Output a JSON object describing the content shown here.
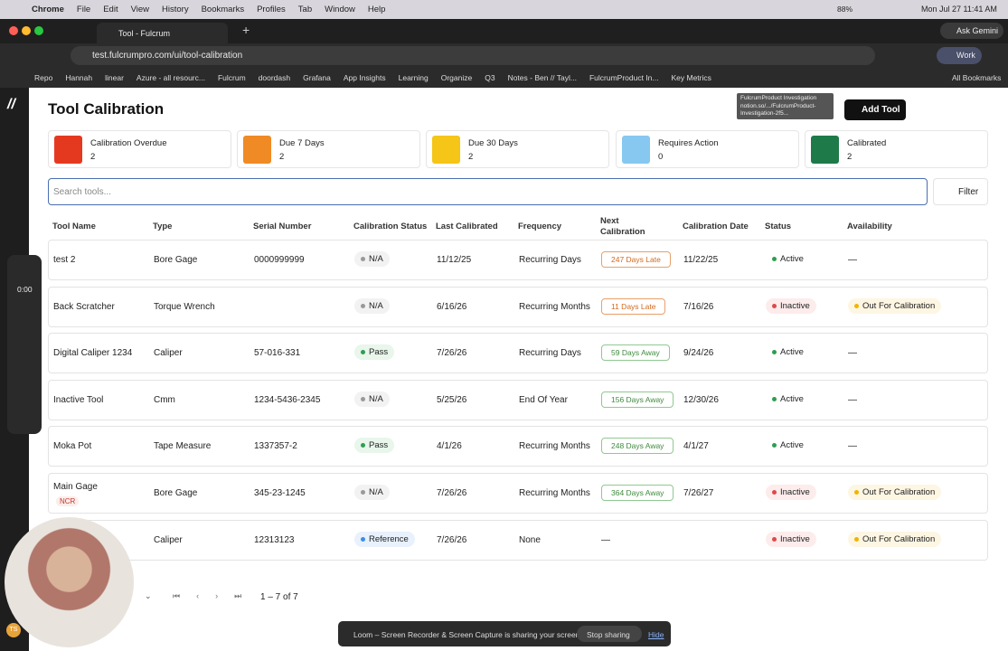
{
  "mac_menu": {
    "app": "Chrome",
    "items": [
      "File",
      "Edit",
      "View",
      "History",
      "Bookmarks",
      "Profiles",
      "Tab",
      "Window",
      "Help"
    ],
    "battery": "88%",
    "datetime": "Mon Jul 27  11:41 AM"
  },
  "browser": {
    "tab_title": "Tool - Fulcrum",
    "url": "test.fulcrumpro.com/ui/tool-calibration",
    "ask": "Ask Gemini",
    "profile": "Work",
    "bookmarks": [
      "Repo",
      "Hannah",
      "linear",
      "Azure - all resourc...",
      "Fulcrum",
      "doordash",
      "Grafana",
      "App Insights",
      "Learning",
      "Organize",
      "Q3",
      "Notes - Ben // Tayl...",
      "FulcrumProduct In...",
      "Key Metrics"
    ],
    "all_bookmarks": "All Bookmarks",
    "tooltip": [
      "FulcrumProduct Investigation",
      "notion.so/.../FulcrumProduct-",
      "Investigation-2f5..."
    ]
  },
  "page": {
    "title": "Tool Calibration",
    "add_tool": "Add Tool",
    "cards": [
      {
        "label": "Calibration Overdue",
        "count": "2"
      },
      {
        "label": "Due 7 Days",
        "count": "2"
      },
      {
        "label": "Due 30 Days",
        "count": "2"
      },
      {
        "label": "Requires Action",
        "count": "0"
      },
      {
        "label": "Calibrated",
        "count": "2"
      }
    ],
    "search_placeholder": "Search tools...",
    "filter": "Filter",
    "columns": [
      "Tool Name",
      "Type",
      "Serial Number",
      "Calibration Status",
      "Last Calibrated",
      "Frequency",
      "Next Calibration",
      "Calibration Date",
      "Status",
      "Availability"
    ],
    "rows": [
      {
        "name": "test 2",
        "type": "Bore Gage",
        "serial": "0000999999",
        "cal_status": "N/A",
        "last": "11/12/25",
        "freq": "Recurring Days",
        "next": "247 Days Late",
        "date": "11/22/25",
        "status": "Active",
        "avail": "—"
      },
      {
        "name": "Back Scratcher",
        "type": "Torque Wrench",
        "cal_status": "N/A",
        "last": "6/16/26",
        "freq": "Recurring Months",
        "next": "11 Days Late",
        "date": "7/16/26",
        "status": "Inactive",
        "avail": "Out For Calibration"
      },
      {
        "name": "Digital Caliper 1234",
        "type": "Caliper",
        "serial": "57-016-331",
        "cal_status": "Pass",
        "last": "7/26/26",
        "freq": "Recurring Days",
        "next": "59 Days Away",
        "date": "9/24/26",
        "status": "Active",
        "avail": "—"
      },
      {
        "name": "Inactive Tool",
        "type": "Cmm",
        "serial": "1234-5436-2345",
        "cal_status": "N/A",
        "last": "5/25/26",
        "freq": "End Of Year",
        "next": "156 Days Away",
        "date": "12/30/26",
        "status": "Active",
        "avail": "—"
      },
      {
        "name": "Moka Pot",
        "type": "Tape Measure",
        "serial": "1337357-2",
        "cal_status": "Pass",
        "last": "4/1/26",
        "freq": "Recurring Months",
        "next": "248 Days Away",
        "date": "4/1/27",
        "status": "Active",
        "avail": "—"
      },
      {
        "name": "Main Gage",
        "tag": "NCR",
        "type": "Bore Gage",
        "serial": "345-23-1245",
        "cal_status": "N/A",
        "last": "7/26/26",
        "freq": "Recurring Months",
        "next": "364 Days Away",
        "date": "7/26/27",
        "status": "Inactive",
        "avail": "Out For Calibration"
      },
      {
        "type": "Caliper",
        "serial": "12313123",
        "cal_status": "Reference",
        "last": "7/26/26",
        "freq": "None",
        "next": "—",
        "status": "Inactive",
        "avail": "Out For Calibration"
      }
    ],
    "pagination": "1 – 7 of 7"
  },
  "loom": {
    "timer": "0:00",
    "banner": "Loom – Screen Recorder & Screen Capture is sharing your screen.",
    "stop": "Stop sharing",
    "hide": "Hide",
    "avatar": "TS"
  }
}
